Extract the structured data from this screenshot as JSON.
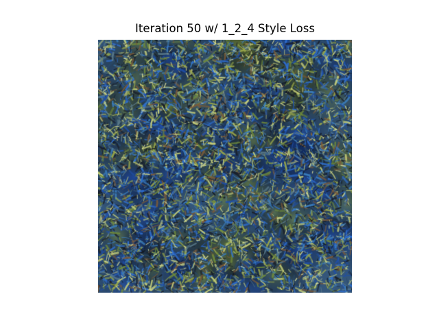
{
  "figure": {
    "title": "Iteration 50 w/ 1_2_4 Style Loss",
    "image": {
      "description_icon": "stylized-texture-image",
      "palette": [
        "#1f4fa8",
        "#2f6fd0",
        "#3b7fc0",
        "#2a4a6a",
        "#6f8a3a",
        "#9aa84a",
        "#7a5a3a",
        "#1a1f2a",
        "#c8d07a",
        "#5a7a8a"
      ]
    }
  }
}
